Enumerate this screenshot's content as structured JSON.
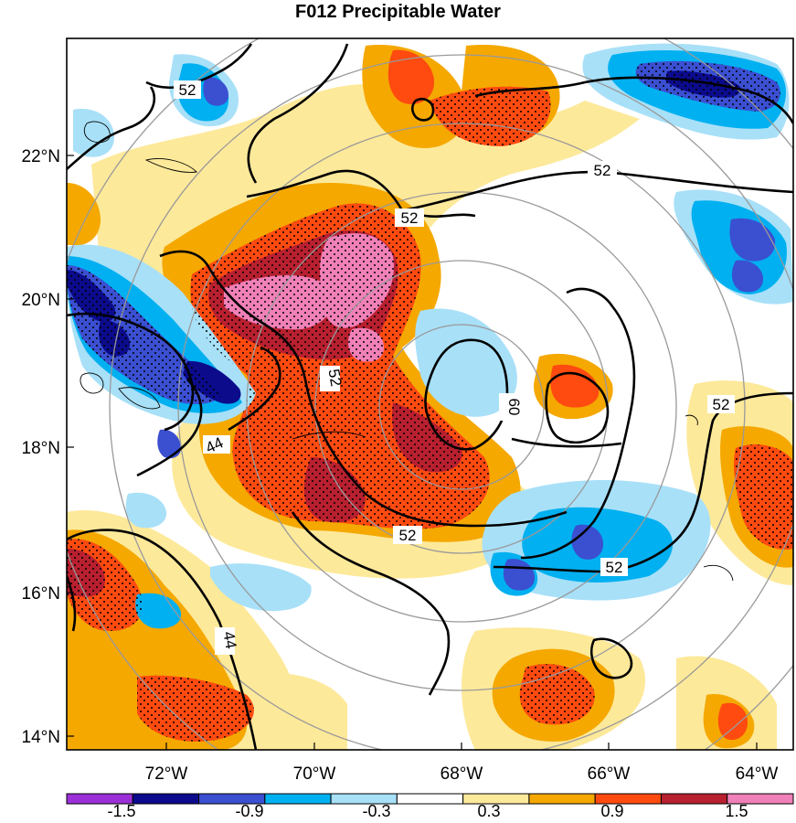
{
  "title": "F012 Precipitable Water",
  "latitude_labels": [
    "22°N",
    "20°N",
    "18°N",
    "16°N",
    "14°N"
  ],
  "longitude_labels": [
    "72°W",
    "70°W",
    "68°W",
    "66°W",
    "64°W"
  ],
  "colorbar": {
    "tick_labels": [
      "-1.5",
      "-0.9",
      "-0.3",
      "0.3",
      "0.9",
      "1.5"
    ],
    "colors": [
      "#9b30d8",
      "#0b0b8c",
      "#3b4fd1",
      "#00b0f0",
      "#a8e0f8",
      "#ffffff",
      "#fde99a",
      "#f5a800",
      "#ff4a10",
      "#b8202f",
      "#f080b8"
    ]
  },
  "contour_labels": [
    "52",
    "52",
    "52",
    "52",
    "52",
    "52",
    "52",
    "60",
    "44",
    "44"
  ],
  "colors": {
    "dark_blue": "#0b0b8c",
    "mid_blue": "#3b4fd1",
    "light_blue": "#00b0f0",
    "pale_blue": "#a8e0f8",
    "pale_yellow": "#fde99a",
    "orange": "#f5a800",
    "red_orange": "#ff4a10",
    "dark_red": "#b8202f",
    "pink": "#f080b8"
  }
}
